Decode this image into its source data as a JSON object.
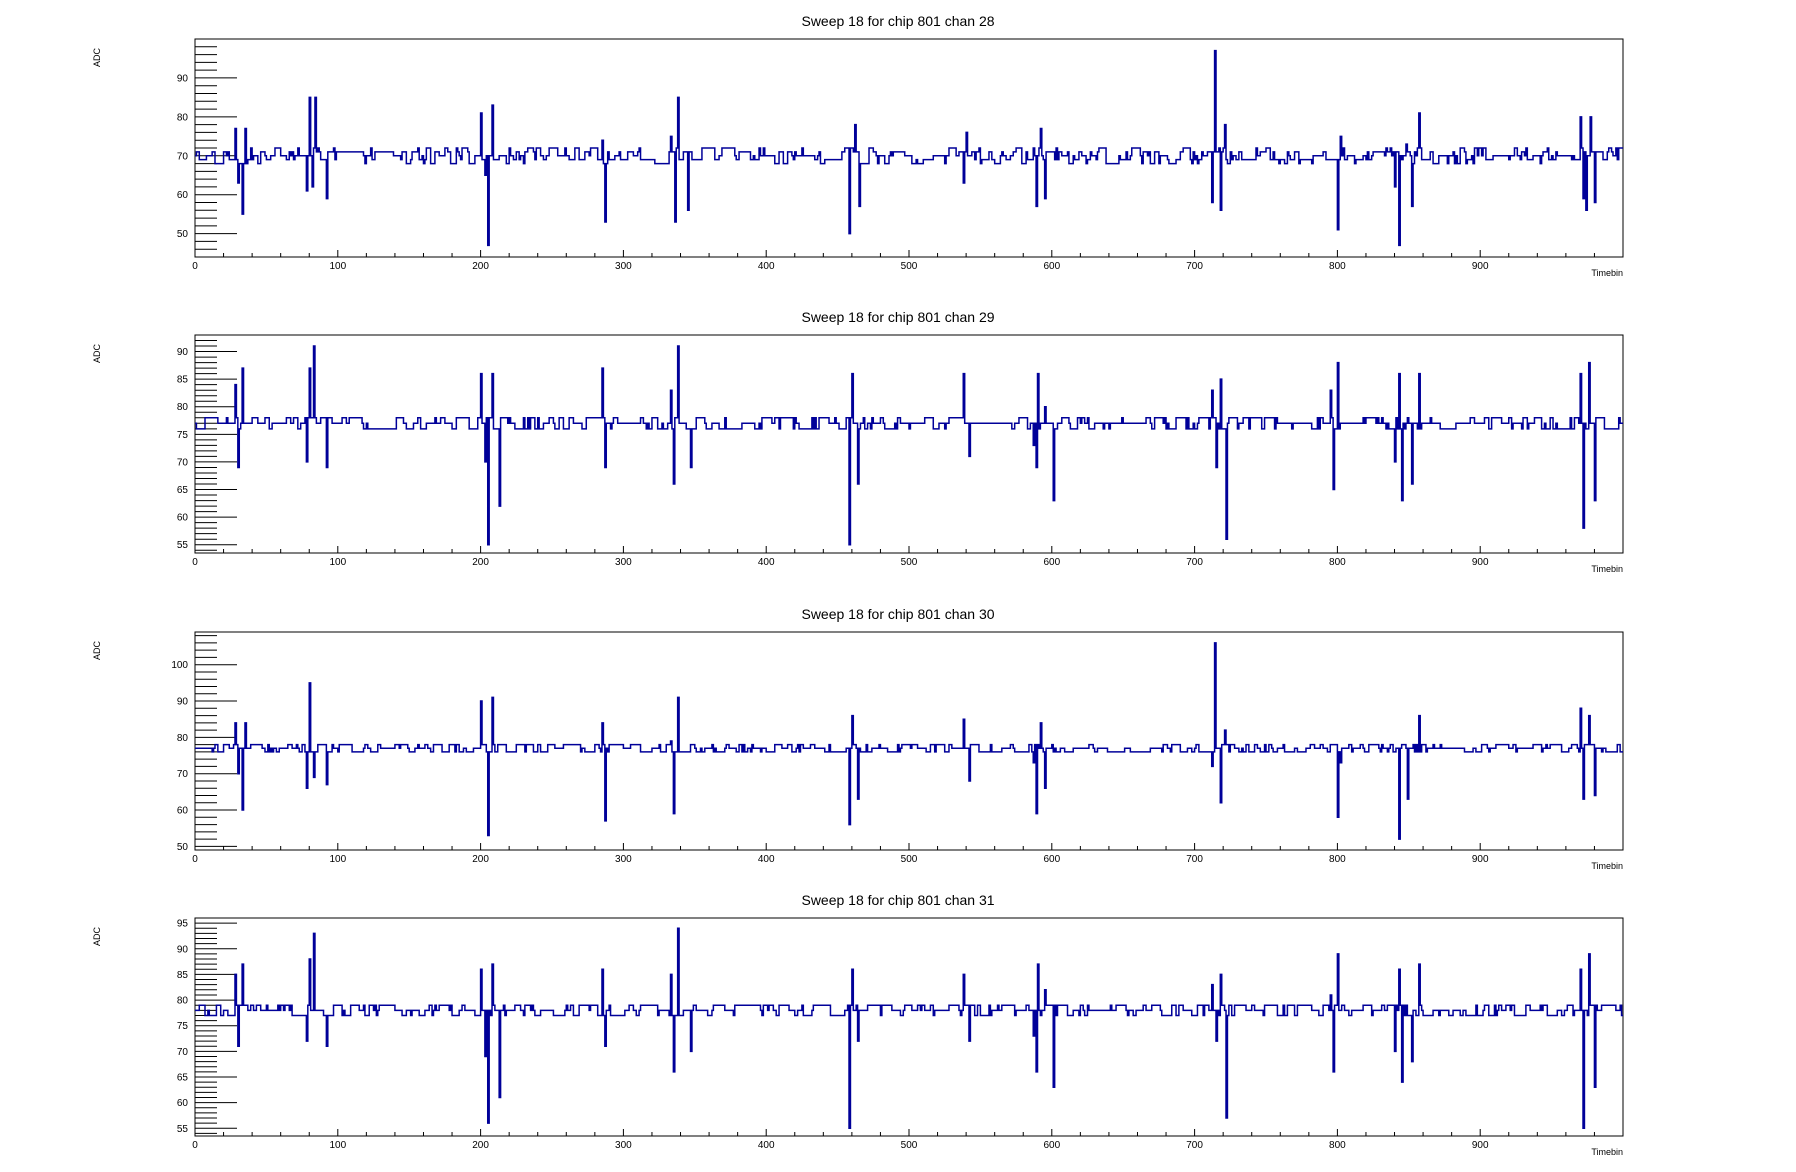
{
  "chart_data": [
    {
      "type": "line",
      "title": "Sweep 18 for chip 801 chan 28",
      "xlabel": "Timebin",
      "ylabel": "ADC",
      "xlim": [
        0,
        1000
      ],
      "ylim": [
        44,
        100
      ],
      "x_ticks": [
        "0",
        "100",
        "200",
        "300",
        "400",
        "500",
        "600",
        "700",
        "800",
        "900"
      ],
      "y_ticks": [
        50,
        60,
        70,
        80,
        90
      ],
      "baseline": 70,
      "noise": 1.5,
      "color": "#000099",
      "spikes": [
        [
          28,
          77
        ],
        [
          30,
          63
        ],
        [
          33,
          55
        ],
        [
          35,
          77
        ],
        [
          78,
          61
        ],
        [
          80,
          85
        ],
        [
          82,
          62
        ],
        [
          84,
          85
        ],
        [
          92,
          59
        ],
        [
          200,
          81
        ],
        [
          203,
          65
        ],
        [
          205,
          47
        ],
        [
          208,
          83
        ],
        [
          285,
          74
        ],
        [
          287,
          53
        ],
        [
          333,
          75
        ],
        [
          336,
          53
        ],
        [
          338,
          85
        ],
        [
          345,
          56
        ],
        [
          458,
          50
        ],
        [
          462,
          78
        ],
        [
          465,
          57
        ],
        [
          538,
          63
        ],
        [
          540,
          76
        ],
        [
          587,
          72
        ],
        [
          589,
          57
        ],
        [
          592,
          77
        ],
        [
          595,
          59
        ],
        [
          712,
          58
        ],
        [
          714,
          97
        ],
        [
          718,
          56
        ],
        [
          721,
          78
        ],
        [
          800,
          51
        ],
        [
          802,
          75
        ],
        [
          840,
          62
        ],
        [
          843,
          47
        ],
        [
          848,
          73
        ],
        [
          852,
          57
        ],
        [
          857,
          81
        ],
        [
          970,
          80
        ],
        [
          972,
          59
        ],
        [
          974,
          56
        ],
        [
          977,
          80
        ],
        [
          980,
          58
        ]
      ]
    },
    {
      "type": "line",
      "title": "Sweep 18 for chip 801 chan 29",
      "xlabel": "Timebin",
      "ylabel": "ADC",
      "xlim": [
        0,
        1000
      ],
      "ylim": [
        53.5,
        93
      ],
      "x_ticks": [
        "0",
        "100",
        "200",
        "300",
        "400",
        "500",
        "600",
        "700",
        "800",
        "900"
      ],
      "y_ticks": [
        55,
        60,
        65,
        70,
        75,
        80,
        85,
        90
      ],
      "baseline": 77,
      "noise": 1.0,
      "color": "#000099",
      "spikes": [
        [
          28,
          84
        ],
        [
          30,
          69
        ],
        [
          33,
          87
        ],
        [
          78,
          70
        ],
        [
          80,
          87
        ],
        [
          83,
          91
        ],
        [
          92,
          69
        ],
        [
          200,
          86
        ],
        [
          203,
          70
        ],
        [
          205,
          55
        ],
        [
          208,
          86
        ],
        [
          213,
          62
        ],
        [
          285,
          87
        ],
        [
          287,
          69
        ],
        [
          333,
          83
        ],
        [
          335,
          66
        ],
        [
          338,
          91
        ],
        [
          347,
          69
        ],
        [
          458,
          55
        ],
        [
          460,
          86
        ],
        [
          464,
          66
        ],
        [
          538,
          86
        ],
        [
          542,
          71
        ],
        [
          587,
          73
        ],
        [
          589,
          69
        ],
        [
          590,
          86
        ],
        [
          595,
          80
        ],
        [
          601,
          63
        ],
        [
          712,
          83
        ],
        [
          715,
          69
        ],
        [
          718,
          85
        ],
        [
          722,
          56
        ],
        [
          795,
          83
        ],
        [
          797,
          65
        ],
        [
          800,
          88
        ],
        [
          840,
          70
        ],
        [
          843,
          86
        ],
        [
          845,
          63
        ],
        [
          848,
          77
        ],
        [
          852,
          66
        ],
        [
          857,
          86
        ],
        [
          970,
          86
        ],
        [
          972,
          58
        ],
        [
          976,
          88
        ],
        [
          980,
          63
        ]
      ]
    },
    {
      "type": "line",
      "title": "Sweep 18 for chip 801 chan 30",
      "xlabel": "Timebin",
      "ylabel": "ADC",
      "xlim": [
        0,
        1000
      ],
      "ylim": [
        49,
        109
      ],
      "x_ticks": [
        "0",
        "100",
        "200",
        "300",
        "400",
        "500",
        "600",
        "700",
        "800",
        "900"
      ],
      "y_ticks": [
        50,
        60,
        70,
        80,
        90,
        100
      ],
      "baseline": 77,
      "noise": 1.0,
      "color": "#000099",
      "spikes": [
        [
          28,
          84
        ],
        [
          30,
          70
        ],
        [
          33,
          60
        ],
        [
          35,
          84
        ],
        [
          78,
          66
        ],
        [
          80,
          95
        ],
        [
          83,
          69
        ],
        [
          92,
          67
        ],
        [
          200,
          90
        ],
        [
          205,
          53
        ],
        [
          208,
          91
        ],
        [
          285,
          84
        ],
        [
          287,
          57
        ],
        [
          333,
          79
        ],
        [
          335,
          59
        ],
        [
          338,
          91
        ],
        [
          458,
          56
        ],
        [
          460,
          86
        ],
        [
          464,
          63
        ],
        [
          538,
          85
        ],
        [
          542,
          68
        ],
        [
          587,
          73
        ],
        [
          589,
          59
        ],
        [
          592,
          84
        ],
        [
          595,
          66
        ],
        [
          712,
          72
        ],
        [
          714,
          106
        ],
        [
          718,
          62
        ],
        [
          721,
          82
        ],
        [
          800,
          58
        ],
        [
          802,
          73
        ],
        [
          843,
          52
        ],
        [
          845,
          78
        ],
        [
          849,
          63
        ],
        [
          857,
          86
        ],
        [
          970,
          88
        ],
        [
          972,
          63
        ],
        [
          976,
          86
        ],
        [
          980,
          64
        ]
      ]
    },
    {
      "type": "line",
      "title": "Sweep 18 for chip 801 chan 31",
      "xlabel": "Timebin",
      "ylabel": "ADC",
      "xlim": [
        0,
        1000
      ],
      "ylim": [
        53.5,
        96
      ],
      "x_ticks": [
        "0",
        "100",
        "200",
        "300",
        "400",
        "500",
        "600",
        "700",
        "800",
        "900"
      ],
      "y_ticks": [
        55,
        60,
        65,
        70,
        75,
        80,
        85,
        90,
        95
      ],
      "baseline": 78,
      "noise": 1.0,
      "color": "#000099",
      "spikes": [
        [
          28,
          85
        ],
        [
          30,
          71
        ],
        [
          33,
          87
        ],
        [
          78,
          72
        ],
        [
          80,
          88
        ],
        [
          83,
          93
        ],
        [
          92,
          71
        ],
        [
          200,
          86
        ],
        [
          203,
          69
        ],
        [
          205,
          56
        ],
        [
          208,
          87
        ],
        [
          213,
          61
        ],
        [
          285,
          86
        ],
        [
          287,
          71
        ],
        [
          333,
          85
        ],
        [
          335,
          66
        ],
        [
          338,
          94
        ],
        [
          347,
          70
        ],
        [
          458,
          55
        ],
        [
          460,
          86
        ],
        [
          464,
          72
        ],
        [
          538,
          85
        ],
        [
          542,
          72
        ],
        [
          587,
          73
        ],
        [
          589,
          66
        ],
        [
          590,
          87
        ],
        [
          595,
          82
        ],
        [
          601,
          63
        ],
        [
          712,
          83
        ],
        [
          715,
          72
        ],
        [
          718,
          85
        ],
        [
          722,
          57
        ],
        [
          795,
          81
        ],
        [
          797,
          66
        ],
        [
          800,
          89
        ],
        [
          840,
          70
        ],
        [
          843,
          86
        ],
        [
          845,
          64
        ],
        [
          848,
          79
        ],
        [
          852,
          68
        ],
        [
          857,
          87
        ],
        [
          970,
          86
        ],
        [
          972,
          55
        ],
        [
          976,
          89
        ],
        [
          980,
          63
        ]
      ]
    }
  ]
}
